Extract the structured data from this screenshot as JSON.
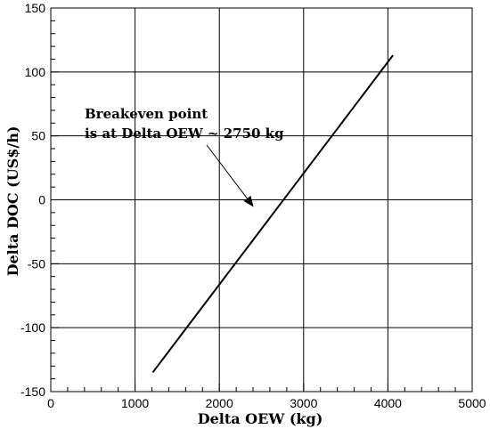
{
  "chart_data": {
    "type": "line",
    "xlabel": "Delta OEW (kg)",
    "ylabel": "Delta DOC (US$/h)",
    "xlim": [
      0,
      5000
    ],
    "ylim": [
      -150,
      150
    ],
    "x_ticks": [
      0,
      1000,
      2000,
      3000,
      4000,
      5000
    ],
    "y_ticks": [
      -150,
      -100,
      -50,
      0,
      50,
      100,
      150
    ],
    "x_tick_labels": [
      "0",
      "1000",
      "2000",
      "3000",
      "4000",
      "5000"
    ],
    "y_tick_labels": [
      "-150",
      "-100",
      "-50",
      "0",
      "50",
      "100",
      "150"
    ],
    "grid": true,
    "series": [
      {
        "x": [
          1210,
          4060
        ],
        "y": [
          -135,
          113
        ]
      }
    ],
    "annotation": {
      "lines": [
        "Breakeven point",
        "is at Delta OEW ~ 2750 kg"
      ],
      "arrow_target": {
        "x": 2400,
        "y": -5
      }
    },
    "colors": {
      "line": "#000000",
      "grid": "#000000",
      "background": "#ffffff"
    }
  }
}
